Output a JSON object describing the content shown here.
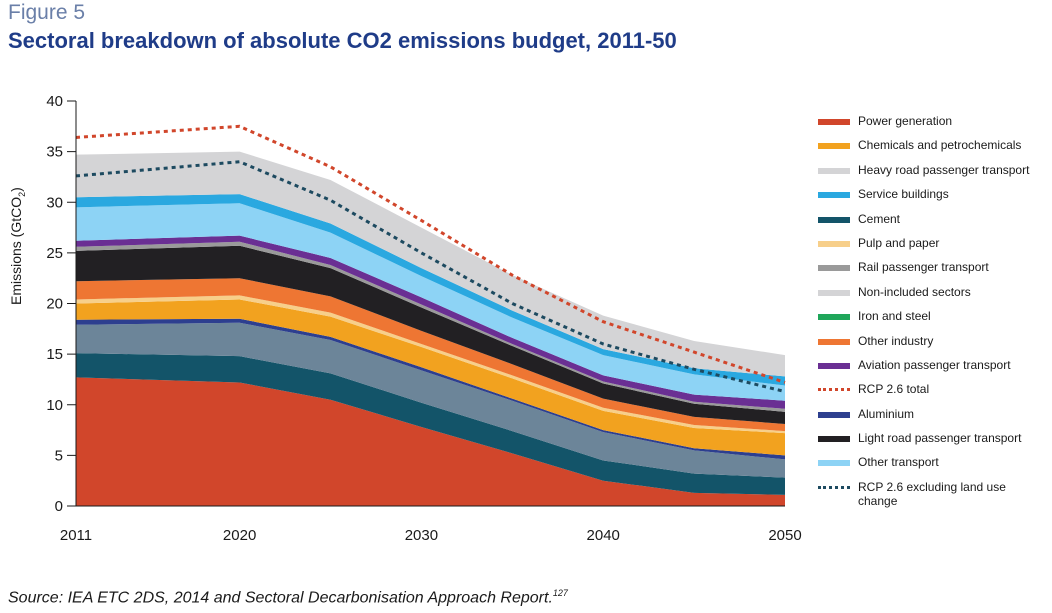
{
  "figure_label": "Figure 5",
  "title": "Sectoral breakdown of absolute CO2 emissions budget, 2011-50",
  "source_text": "Source: IEA ETC 2DS, 2014 and Sectoral Decarbonisation Approach Report.",
  "source_sup": "127",
  "chart_data": {
    "type": "area",
    "stacked": true,
    "title": "Sectoral breakdown of absolute CO2 emissions budget, 2011-50",
    "xlabel": "",
    "ylabel": "Emissions (GtCO",
    "ylabel_sub": "2",
    "ylabel_close": ")",
    "ylim": [
      0,
      40
    ],
    "yticks": [
      0,
      5,
      10,
      15,
      20,
      25,
      30,
      35,
      40
    ],
    "x": [
      2011,
      2020,
      2025,
      2030,
      2035,
      2040,
      2045,
      2050
    ],
    "xticks": [
      2011,
      2020,
      2030,
      2040,
      2050
    ],
    "legend_position": "right",
    "stack_order": [
      {
        "name": "Power generation",
        "color": "#d1462b",
        "values": [
          12.7,
          12.2,
          10.5,
          7.8,
          5.2,
          2.5,
          1.3,
          1.1
        ]
      },
      {
        "name": "Cement",
        "color": "#135469",
        "values": [
          2.4,
          2.6,
          2.6,
          2.4,
          2.2,
          2.0,
          1.9,
          1.7
        ]
      },
      {
        "name": "Other transport",
        "color": "#6c8599",
        "values": [
          2.8,
          3.3,
          3.3,
          3.2,
          3.0,
          2.8,
          2.3,
          1.8
        ]
      },
      {
        "name": "Aluminium",
        "color": "#2d3f8f",
        "values": [
          0.5,
          0.4,
          0.3,
          0.3,
          0.2,
          0.2,
          0.2,
          0.4
        ]
      },
      {
        "name": "Chemicals and petrochemicals",
        "color": "#f2a21f",
        "values": [
          1.6,
          1.9,
          2.0,
          2.0,
          2.0,
          1.9,
          2.0,
          2.2
        ]
      },
      {
        "name": "Pulp and paper",
        "color": "#f7cf8a",
        "values": [
          0.4,
          0.4,
          0.4,
          0.3,
          0.3,
          0.3,
          0.3,
          0.2
        ]
      },
      {
        "name": "Other industry",
        "color": "#ee7633",
        "values": [
          1.8,
          1.7,
          1.6,
          1.3,
          1.1,
          0.9,
          0.8,
          0.7
        ]
      },
      {
        "name": "Iron and steel",
        "color": "#1fa65a",
        "values": [
          0.0,
          0.0,
          0.0,
          0.0,
          0.0,
          0.0,
          0.0,
          0.0
        ]
      },
      {
        "name": "Light road passenger transport",
        "color": "#222023",
        "values": [
          3.0,
          3.2,
          2.8,
          2.3,
          1.8,
          1.5,
          1.3,
          1.2
        ]
      },
      {
        "name": "Rail passenger transport",
        "color": "#9a9a9a",
        "values": [
          0.4,
          0.4,
          0.3,
          0.3,
          0.2,
          0.2,
          0.2,
          0.3
        ]
      },
      {
        "name": "Aviation passenger transport",
        "color": "#6a2f93",
        "values": [
          0.6,
          0.6,
          0.7,
          0.7,
          0.6,
          0.6,
          0.7,
          0.8
        ]
      },
      {
        "name": "Other transport (light blue)",
        "color": "#8dd3f5",
        "values": [
          3.3,
          3.2,
          2.5,
          2.1,
          2.0,
          2.0,
          2.0,
          1.5
        ]
      },
      {
        "name": "Service buildings",
        "color": "#2aa8e0",
        "values": [
          1.0,
          0.9,
          0.9,
          0.8,
          0.7,
          0.6,
          0.6,
          0.9
        ]
      },
      {
        "name": "Heavy road passenger transport",
        "color": "#d4d4d6",
        "values": [
          4.2,
          4.2,
          4.3,
          4.0,
          3.5,
          3.3,
          2.7,
          2.1
        ]
      }
    ],
    "lines": [
      {
        "name": "RCP 2.6 total",
        "color": "#d1462b",
        "values": [
          36.4,
          37.5,
          33.5,
          28.2,
          22.8,
          18.2,
          15.2,
          12.2
        ]
      },
      {
        "name": "RCP 2.6 excluding land use change",
        "color": "#1d4a60",
        "values": [
          32.6,
          34.0,
          30.2,
          25.0,
          20.0,
          16.0,
          13.5,
          11.3
        ]
      }
    ]
  },
  "legend": [
    {
      "label": "Power generation",
      "color": "#d1462b",
      "style": "solid"
    },
    {
      "label": "Chemicals and petrochemicals",
      "color": "#f2a21f",
      "style": "solid"
    },
    {
      "label": "Heavy road passenger transport",
      "color": "#d4d4d6",
      "style": "solid"
    },
    {
      "label": "Service buildings",
      "color": "#2aa8e0",
      "style": "solid"
    },
    {
      "label": "Cement",
      "color": "#135469",
      "style": "solid"
    },
    {
      "label": "Pulp and paper",
      "color": "#f7cf8a",
      "style": "solid"
    },
    {
      "label": "Rail passenger transport",
      "color": "#9a9a9a",
      "style": "solid"
    },
    {
      "label": "Non-included sectors",
      "color": "#d4d4d6",
      "style": "solid"
    },
    {
      "label": "Iron and steel",
      "color": "#1fa65a",
      "style": "solid"
    },
    {
      "label": "Other industry",
      "color": "#ee7633",
      "style": "solid"
    },
    {
      "label": "Aviation passenger transport",
      "color": "#6a2f93",
      "style": "solid"
    },
    {
      "label": "RCP 2.6 total",
      "color": "#d1462b",
      "style": "dashed"
    },
    {
      "label": "Aluminium",
      "color": "#2d3f8f",
      "style": "solid"
    },
    {
      "label": "Light road passenger transport",
      "color": "#222023",
      "style": "solid"
    },
    {
      "label": "Other transport",
      "color": "#8dd3f5",
      "style": "solid"
    },
    {
      "label": "RCP 2.6 excluding land use change",
      "color": "#1d4a60",
      "style": "dashed"
    }
  ]
}
